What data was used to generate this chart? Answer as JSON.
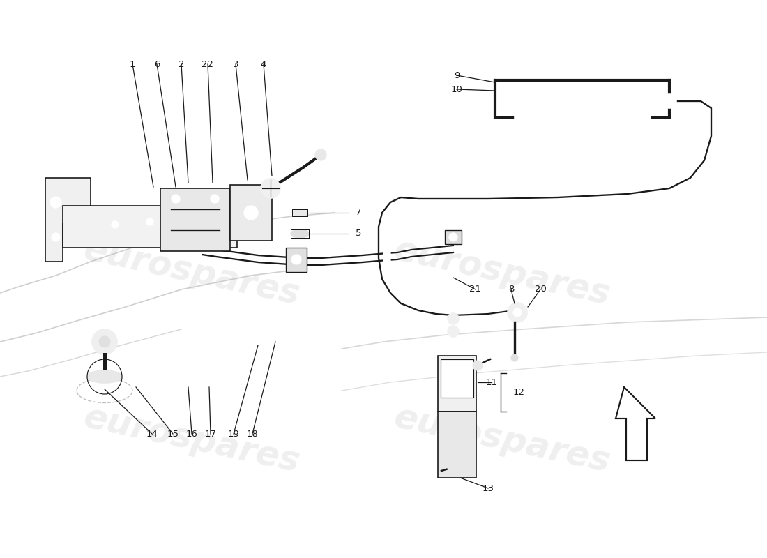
{
  "background_color": "#ffffff",
  "watermark_text": "eurospares",
  "watermark_color": "#cccccc",
  "watermark_alpha": 0.3,
  "watermark_fontsize": 36,
  "watermark_rotation": -12,
  "line_color": "#1a1a1a",
  "line_width": 1.2,
  "label_fontsize": 9.5
}
